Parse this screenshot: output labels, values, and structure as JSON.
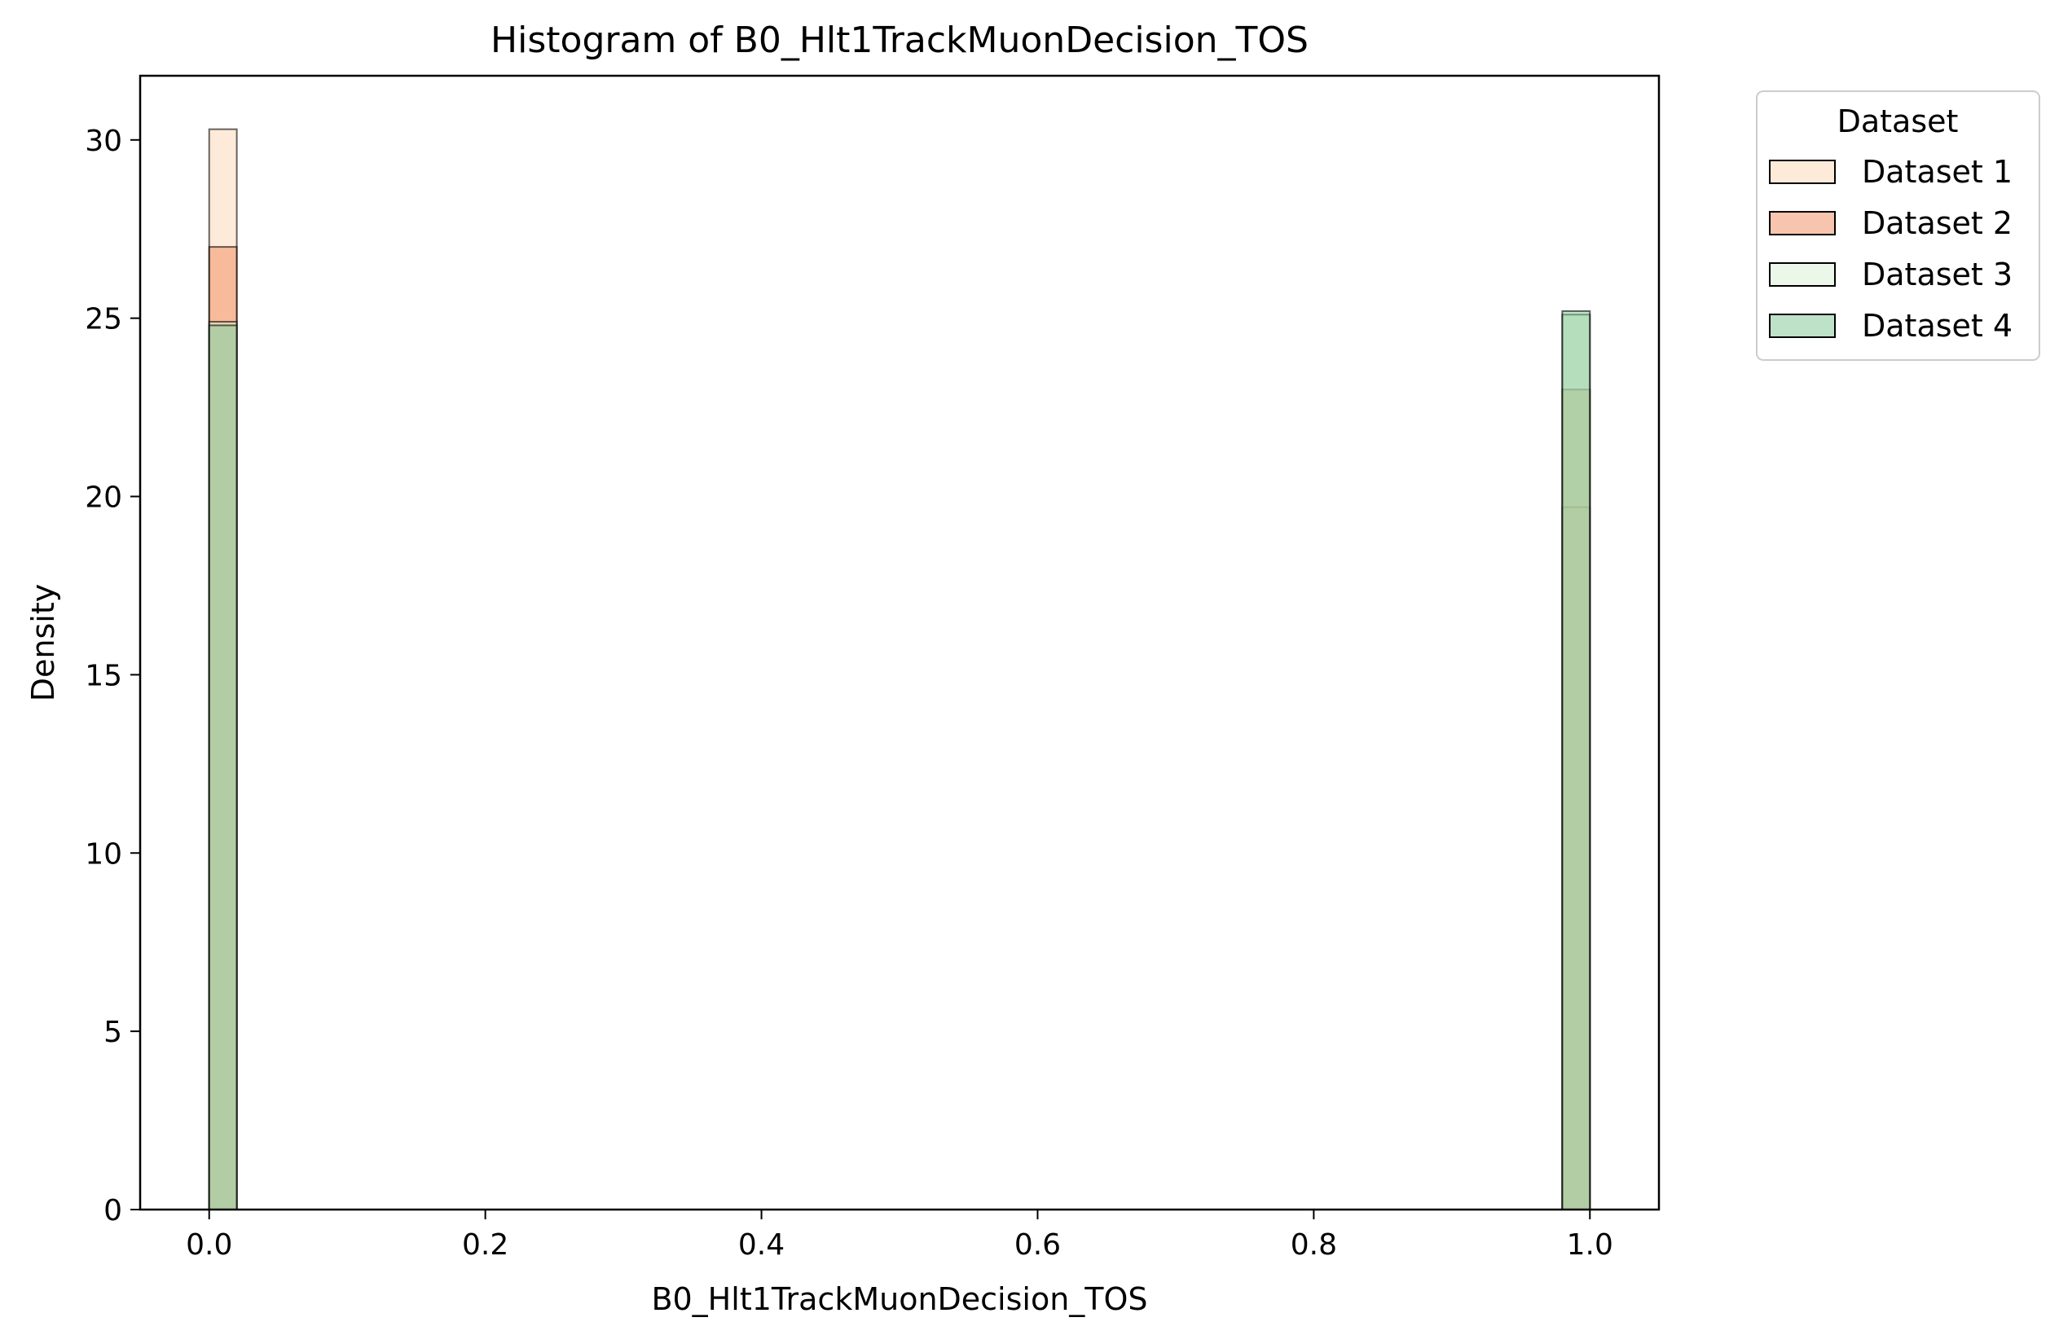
{
  "chart_data": {
    "type": "bar",
    "title": "Histogram of B0_Hlt1TrackMuonDecision_TOS",
    "xlabel": "B0_Hlt1TrackMuonDecision_TOS",
    "ylabel": "Density",
    "xlim": [
      -0.05,
      1.05
    ],
    "ylim": [
      0,
      31.8
    ],
    "xticks": [
      {
        "value": 0.0,
        "label": "0.0"
      },
      {
        "value": 0.2,
        "label": "0.2"
      },
      {
        "value": 0.4,
        "label": "0.4"
      },
      {
        "value": 0.6,
        "label": "0.6"
      },
      {
        "value": 0.8,
        "label": "0.8"
      },
      {
        "value": 1.0,
        "label": "1.0"
      }
    ],
    "yticks": [
      {
        "value": 0,
        "label": "0"
      },
      {
        "value": 5,
        "label": "5"
      },
      {
        "value": 10,
        "label": "10"
      },
      {
        "value": 15,
        "label": "15"
      },
      {
        "value": 20,
        "label": "20"
      },
      {
        "value": 25,
        "label": "25"
      },
      {
        "value": 30,
        "label": "30"
      }
    ],
    "bin_width": 0.02,
    "grid": false,
    "legend": {
      "title": "Dataset",
      "placement": "outside top-right"
    },
    "series": [
      {
        "name": "Dataset 1",
        "color": "#fdd5b3",
        "bins": [
          {
            "x0": 0.0,
            "density": 30.3
          },
          {
            "x0": 0.98,
            "density": 19.7
          }
        ]
      },
      {
        "name": "Dataset 2",
        "color": "#ef8a5c",
        "bins": [
          {
            "x0": 0.0,
            "density": 27.0
          },
          {
            "x0": 0.98,
            "density": 23.0
          }
        ]
      },
      {
        "name": "Dataset 3",
        "color": "#d7efd2",
        "bins": [
          {
            "x0": 0.0,
            "density": 24.9
          },
          {
            "x0": 0.98,
            "density": 25.1
          }
        ]
      },
      {
        "name": "Dataset 4",
        "color": "#7dc68f",
        "bins": [
          {
            "x0": 0.0,
            "density": 24.8
          },
          {
            "x0": 0.98,
            "density": 25.2
          }
        ]
      }
    ]
  }
}
